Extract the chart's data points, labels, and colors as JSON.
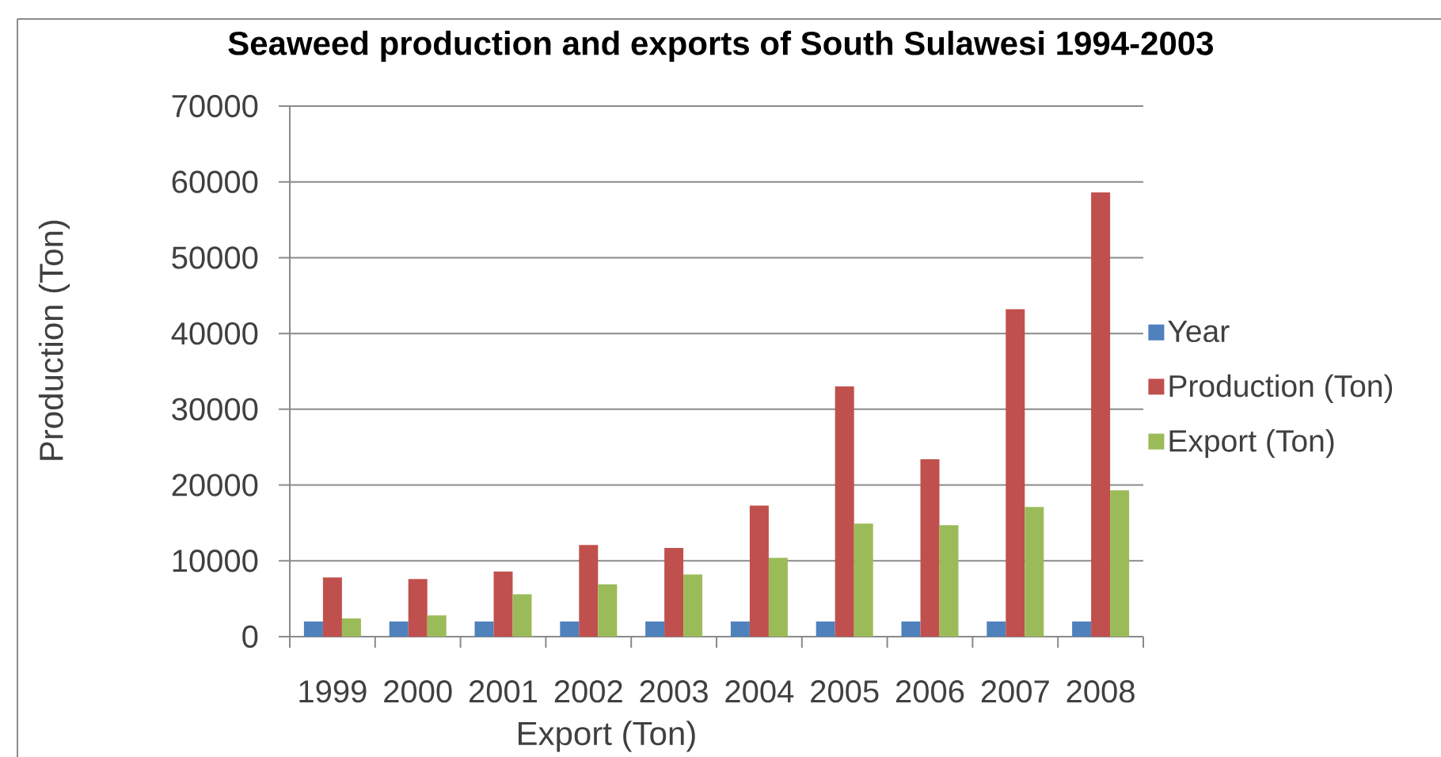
{
  "chart_data": {
    "type": "bar",
    "title": "Seaweed production and exports of South Sulawesi 1994-2003",
    "xlabel": "Export (Ton)",
    "ylabel": "Production (Ton)",
    "categories": [
      "1999",
      "2000",
      "2001",
      "2002",
      "2003",
      "2004",
      "2005",
      "2006",
      "2007",
      "2008"
    ],
    "series": [
      {
        "name": "Year",
        "color": "#4f81bd",
        "values": [
          2000,
          2000,
          2000,
          2000,
          2000,
          2000,
          2000,
          2000,
          2000,
          2000
        ]
      },
      {
        "name": "Production (Ton)",
        "color": "#c0504d",
        "values": [
          7800,
          7600,
          8600,
          12100,
          11700,
          17300,
          33000,
          23400,
          43200,
          58600
        ]
      },
      {
        "name": "Export (Ton)",
        "color": "#9bbb59",
        "values": [
          2400,
          2800,
          5600,
          6900,
          8200,
          10400,
          14900,
          14700,
          17100,
          19300
        ]
      }
    ],
    "ylim": [
      0,
      70000
    ],
    "yticks": [
      0,
      10000,
      20000,
      30000,
      40000,
      50000,
      60000,
      70000
    ],
    "grid": "y",
    "legend": "right"
  }
}
